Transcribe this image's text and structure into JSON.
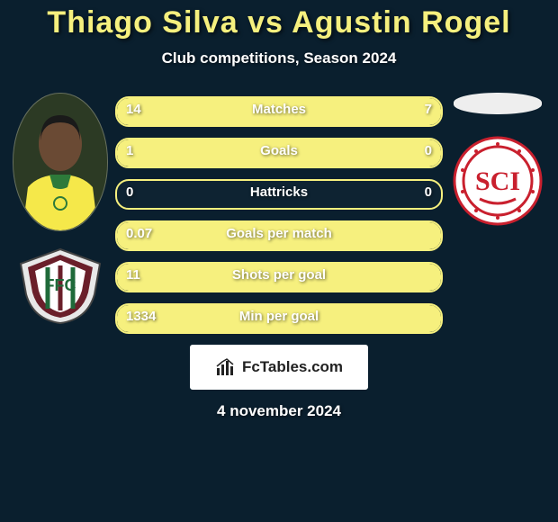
{
  "title": "Thiago Silva vs Agustin Rogel",
  "subtitle": "Club competitions, Season 2024",
  "date": "4 november 2024",
  "footer_brand": "FcTables.com",
  "colors": {
    "accent": "#f6f07e",
    "background": "#0a1f2e",
    "text": "#ffffff",
    "card_bg": "#ffffff",
    "card_text": "#222222",
    "left_shirt": "#f5e84a",
    "left_shirt_accent": "#2d7a3a",
    "left_club_shield": "#6a1f2a",
    "left_club_inner": "#e8e8e8",
    "left_club_green": "#1f6a3a",
    "right_club_red": "#c9202e",
    "right_club_white": "#ffffff"
  },
  "player_left": {
    "name": "Thiago Silva",
    "club": "Fluminense"
  },
  "player_right": {
    "name": "Agustin Rogel",
    "club": "Internacional"
  },
  "stats": [
    {
      "label": "Matches",
      "left_val": "14",
      "right_val": "7",
      "left_pct": 66,
      "right_pct": 34
    },
    {
      "label": "Goals",
      "left_val": "1",
      "right_val": "0",
      "left_pct": 100,
      "right_pct": 0
    },
    {
      "label": "Hattricks",
      "left_val": "0",
      "right_val": "0",
      "left_pct": 0,
      "right_pct": 0
    },
    {
      "label": "Goals per match",
      "left_val": "0.07",
      "right_val": "",
      "left_pct": 100,
      "right_pct": 0
    },
    {
      "label": "Shots per goal",
      "left_val": "11",
      "right_val": "",
      "left_pct": 100,
      "right_pct": 0
    },
    {
      "label": "Min per goal",
      "left_val": "1334",
      "right_val": "",
      "left_pct": 100,
      "right_pct": 0
    }
  ],
  "bar_style": {
    "height": 30,
    "border_radius": 15,
    "border_color": "#f6f07e",
    "fill_color": "#f6f07e",
    "font_size": 15
  }
}
